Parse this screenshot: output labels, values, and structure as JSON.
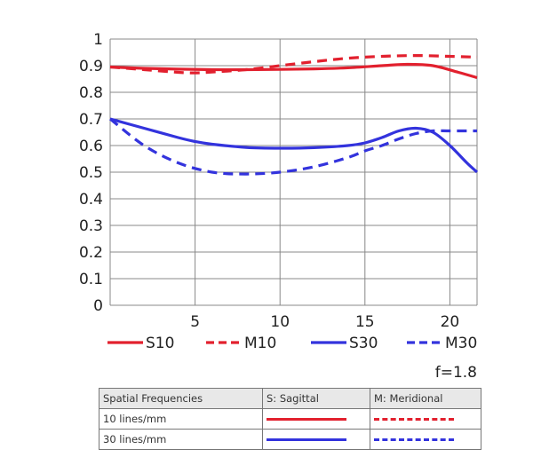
{
  "chart_data": {
    "type": "line",
    "title": "",
    "xlabel": "",
    "ylabel": "",
    "xlim": [
      0,
      21.6
    ],
    "ylim": [
      0,
      1
    ],
    "grid": true,
    "x_ticks": [
      5,
      10,
      15,
      20
    ],
    "y_ticks": [
      0,
      0.1,
      0.2,
      0.3,
      0.4,
      0.5,
      0.6,
      0.7,
      0.8,
      0.9,
      1
    ],
    "y_tick_labels": [
      "0",
      "0.1",
      "0.2",
      "0.3",
      "0.4",
      "0.5",
      "0.6",
      "0.7",
      "0.8",
      "0.9",
      "1"
    ],
    "legend_position": "bottom",
    "series": [
      {
        "name": "S10",
        "color": "#e2202e",
        "dash": false,
        "x": [
          0,
          2,
          4,
          6,
          8,
          10,
          12,
          14,
          16,
          17.5,
          19,
          20.5,
          21.6
        ],
        "y": [
          0.895,
          0.89,
          0.887,
          0.885,
          0.885,
          0.886,
          0.888,
          0.892,
          0.9,
          0.905,
          0.9,
          0.875,
          0.855
        ]
      },
      {
        "name": "M10",
        "color": "#e2202e",
        "dash": true,
        "x": [
          0,
          2,
          4,
          5,
          6,
          8,
          10,
          12,
          14,
          16,
          18,
          20,
          21.6
        ],
        "y": [
          0.895,
          0.885,
          0.875,
          0.873,
          0.876,
          0.885,
          0.9,
          0.915,
          0.928,
          0.935,
          0.938,
          0.935,
          0.932
        ]
      },
      {
        "name": "S30",
        "color": "#3333dd",
        "dash": false,
        "x": [
          0,
          2,
          4,
          5,
          6,
          8,
          10,
          12,
          14,
          15,
          16,
          17,
          18,
          19,
          20,
          21,
          21.6
        ],
        "y": [
          0.7,
          0.665,
          0.63,
          0.615,
          0.605,
          0.593,
          0.59,
          0.592,
          0.6,
          0.61,
          0.63,
          0.655,
          0.665,
          0.65,
          0.6,
          0.535,
          0.5
        ]
      },
      {
        "name": "M30",
        "color": "#3333dd",
        "dash": true,
        "x": [
          0,
          2,
          4,
          6,
          8,
          10,
          12,
          14,
          15,
          16,
          17,
          18,
          19,
          20,
          21.6
        ],
        "y": [
          0.7,
          0.6,
          0.535,
          0.5,
          0.493,
          0.5,
          0.52,
          0.555,
          0.58,
          0.6,
          0.625,
          0.645,
          0.655,
          0.655,
          0.655
        ]
      }
    ],
    "annotations": [
      "f=1.8"
    ]
  },
  "legend": {
    "items": [
      {
        "label": "S10",
        "color": "#e2202e",
        "dash": false
      },
      {
        "label": "M10",
        "color": "#e2202e",
        "dash": true
      },
      {
        "label": "S30",
        "color": "#3333dd",
        "dash": false
      },
      {
        "label": "M30",
        "color": "#3333dd",
        "dash": true
      }
    ]
  },
  "aperture_label": "f=1.8",
  "table": {
    "headers": [
      "Spatial Frequencies",
      "S: Sagittal",
      "M: Meridional"
    ],
    "rows": [
      {
        "label": "10 lines/mm",
        "color": "#e2202e"
      },
      {
        "label": "30 lines/mm",
        "color": "#3333dd"
      }
    ]
  }
}
